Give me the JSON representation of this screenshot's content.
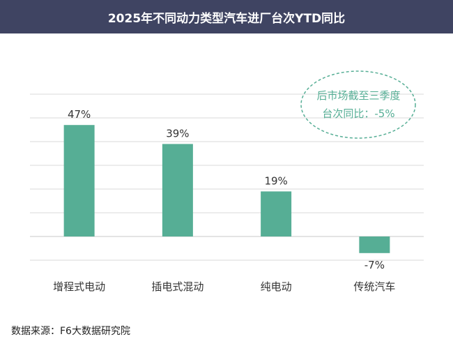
{
  "title": "2025年不同动力类型汽车进厂台次YTD同比",
  "callout": {
    "line1": "后市场截至三季度",
    "line2": "台次同比：-5%"
  },
  "source": "数据来源：F6大数据研究院",
  "colors": {
    "title_bg": "#3f4462",
    "bar": "#56ae95",
    "callout": "#56ae95",
    "grid": "#d9d9d9"
  },
  "chart_data": {
    "type": "bar",
    "title": "2025年不同动力类型汽车进厂台次YTD同比",
    "categories": [
      "增程式电动",
      "插电式混动",
      "纯电动",
      "传统汽车"
    ],
    "values": [
      47,
      39,
      19,
      -7
    ],
    "value_labels": [
      "47%",
      "39%",
      "19%",
      "-7%"
    ],
    "ylim": [
      -10,
      60
    ],
    "grid": true,
    "xlabel": "",
    "ylabel": ""
  }
}
